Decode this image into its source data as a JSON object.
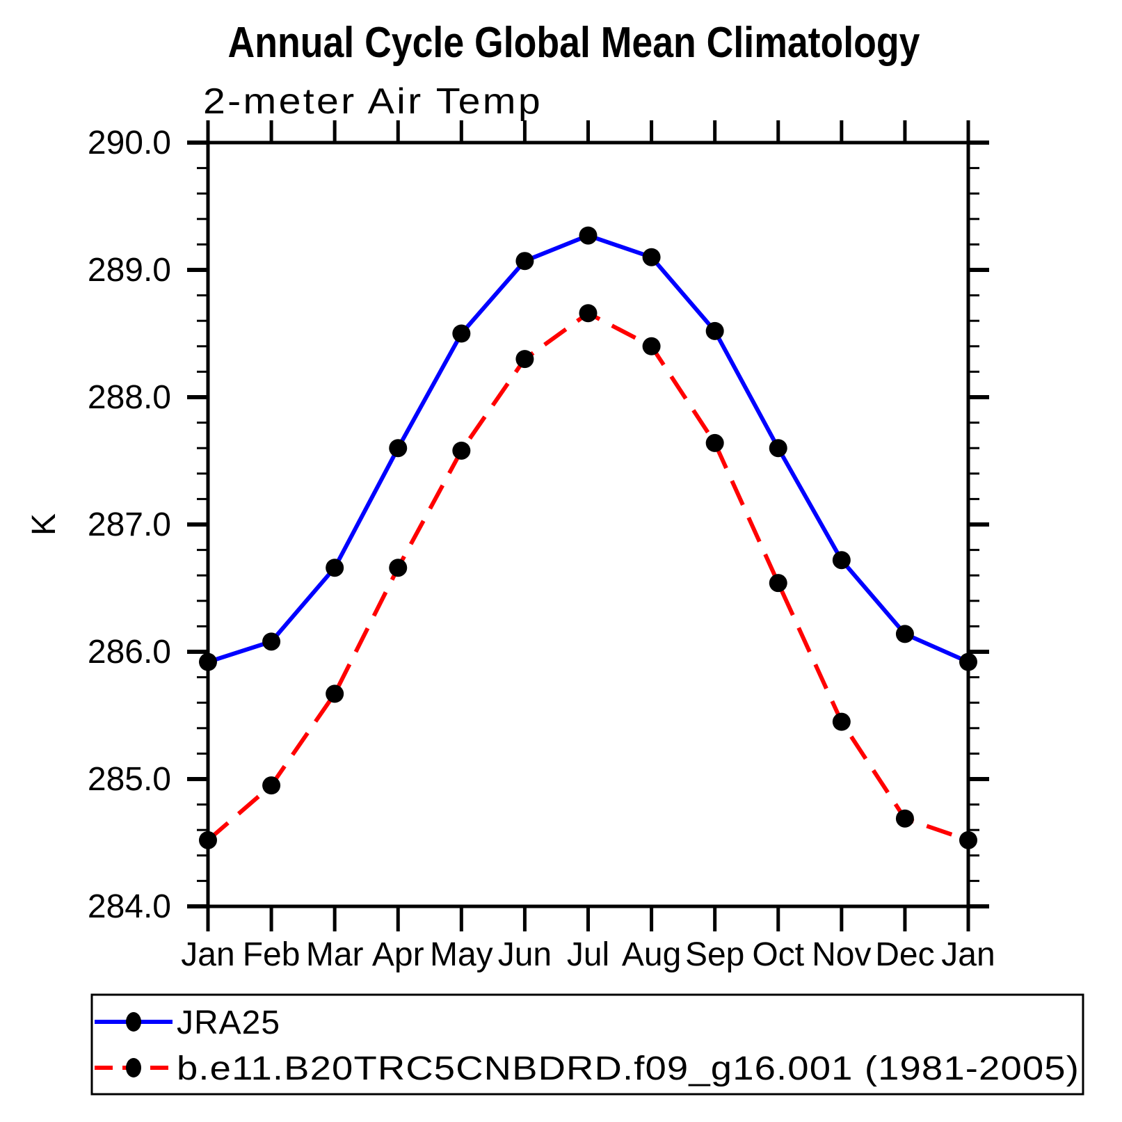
{
  "header": {
    "title": "Annual Cycle Global Mean Climatology",
    "subtitle": "2-meter Air Temp"
  },
  "chart_data": {
    "type": "line",
    "title": "Annual Cycle Global Mean Climatology",
    "subtitle": "2-meter Air Temp",
    "xlabel": "",
    "ylabel": "K",
    "categories": [
      "Jan",
      "Feb",
      "Mar",
      "Apr",
      "May",
      "Jun",
      "Jul",
      "Aug",
      "Sep",
      "Oct",
      "Nov",
      "Dec",
      "Jan"
    ],
    "ylim": [
      284.0,
      290.0
    ],
    "y_major_step": 1.0,
    "y_minor_step": 0.2,
    "y_tick_labels": [
      "284.0",
      "285.0",
      "286.0",
      "287.0",
      "288.0",
      "289.0",
      "290.0"
    ],
    "grid": false,
    "legend_position": "bottom-left-box",
    "background_color": "#ffffff",
    "axis_color": "#000000",
    "marker_color": "#000000",
    "series": [
      {
        "name": "JRA25",
        "line_color": "#0000ff",
        "line_style": "solid",
        "marker": "filled-circle",
        "values": [
          285.92,
          286.08,
          286.66,
          287.6,
          288.5,
          289.07,
          289.27,
          289.1,
          288.52,
          287.6,
          286.72,
          286.14,
          285.92
        ]
      },
      {
        "name": "b.e11.B20TRC5CNBDRD.f09_g16.001 (1981-2005)",
        "line_color": "#ff0000",
        "line_style": "dashed",
        "marker": "filled-circle",
        "values": [
          284.52,
          284.95,
          285.67,
          286.66,
          287.58,
          288.3,
          288.66,
          288.4,
          287.64,
          286.54,
          285.45,
          284.69,
          284.52
        ]
      }
    ]
  }
}
